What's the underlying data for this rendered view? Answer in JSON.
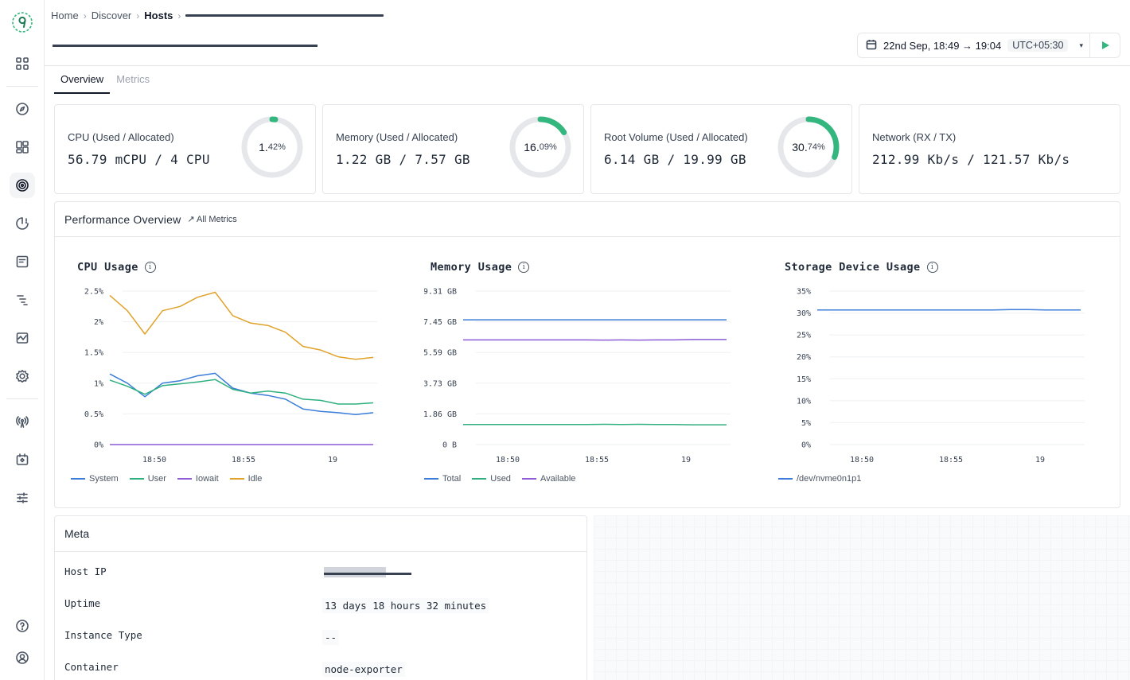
{
  "breadcrumb": {
    "home": "Home",
    "discover": "Discover",
    "hosts": "Hosts",
    "sep": "›"
  },
  "timepicker": {
    "range": "22nd Sep, 18:49 → 19:04",
    "timezone": "UTC+05:30",
    "caret": "▾"
  },
  "tabs": [
    "Overview",
    "Metrics"
  ],
  "cards": [
    {
      "label": "CPU (Used / Allocated)",
      "value": "56.79 mCPU / 4 CPU",
      "pct_int": "1.",
      "pct_dec": "42%",
      "fraction": 0.0142
    },
    {
      "label": "Memory (Used / Allocated)",
      "value": "1.22 GB / 7.57 GB",
      "pct_int": "16.",
      "pct_dec": "09%",
      "fraction": 0.1609
    },
    {
      "label": "Root Volume (Used / Allocated)",
      "value": "6.14 GB / 19.99 GB",
      "pct_int": "30.",
      "pct_dec": "74%",
      "fraction": 0.3074
    },
    {
      "label": "Network (RX / TX)",
      "value": "212.99 Kb/s / 121.57 Kb/s"
    }
  ],
  "performance": {
    "title": "Performance Overview",
    "link": "↗ All Metrics"
  },
  "colors": {
    "blue": "#3b7dd8",
    "green": "#2fb07f",
    "purple": "#8b5cd6",
    "orange": "#e0a22a",
    "gauge": "#34b67f",
    "track": "#e5e7eb"
  },
  "chart_data": [
    {
      "type": "line",
      "title": "CPU Usage",
      "x_ticks": [
        "18:50",
        "18:55",
        "19"
      ],
      "y_ticks": [
        "2.5%",
        "2%",
        "1.5%",
        "1%",
        "0.5%",
        "0%"
      ],
      "ylim": [
        0,
        2.5
      ],
      "x_count": 16,
      "series": [
        {
          "name": "System",
          "color": "#3b7dd8",
          "values": [
            1.15,
            1.0,
            0.78,
            1.0,
            1.04,
            1.12,
            1.16,
            0.92,
            0.84,
            0.8,
            0.74,
            0.58,
            0.54,
            0.52,
            0.49,
            0.52
          ]
        },
        {
          "name": "User",
          "color": "#2fb07f",
          "values": [
            1.05,
            0.95,
            0.82,
            0.96,
            0.99,
            1.02,
            1.06,
            0.9,
            0.84,
            0.87,
            0.84,
            0.74,
            0.72,
            0.66,
            0.66,
            0.68
          ]
        },
        {
          "name": "Iowait",
          "color": "#8b5cd6",
          "values": [
            0,
            0,
            0,
            0,
            0,
            0,
            0,
            0,
            0,
            0,
            0,
            0,
            0,
            0,
            0,
            0
          ]
        },
        {
          "name": "Idle",
          "color": "#e0a22a",
          "values": [
            2.43,
            2.18,
            1.8,
            2.18,
            2.25,
            2.4,
            2.48,
            2.1,
            1.98,
            1.94,
            1.83,
            1.6,
            1.54,
            1.43,
            1.39,
            1.42
          ]
        }
      ]
    },
    {
      "type": "line",
      "title": "Memory Usage",
      "x_ticks": [
        "18:50",
        "18:55",
        "19"
      ],
      "y_ticks": [
        "9.31 GB",
        "7.45 GB",
        "5.59 GB",
        "3.73 GB",
        "1.86 GB",
        "0 B"
      ],
      "ylim": [
        0,
        9.31
      ],
      "x_count": 16,
      "series": [
        {
          "name": "Total",
          "color": "#3b7dd8",
          "values": [
            7.57,
            7.57,
            7.57,
            7.57,
            7.57,
            7.57,
            7.57,
            7.57,
            7.57,
            7.57,
            7.57,
            7.57,
            7.57,
            7.57,
            7.57,
            7.57
          ]
        },
        {
          "name": "Used",
          "color": "#2fb07f",
          "values": [
            1.22,
            1.22,
            1.22,
            1.22,
            1.22,
            1.22,
            1.22,
            1.22,
            1.23,
            1.22,
            1.23,
            1.22,
            1.22,
            1.2,
            1.2,
            1.2
          ]
        },
        {
          "name": "Available",
          "color": "#8b5cd6",
          "values": [
            6.35,
            6.35,
            6.35,
            6.35,
            6.35,
            6.35,
            6.35,
            6.35,
            6.34,
            6.35,
            6.34,
            6.35,
            6.35,
            6.37,
            6.37,
            6.37
          ]
        }
      ]
    },
    {
      "type": "line",
      "title": "Storage Device Usage",
      "x_ticks": [
        "18:50",
        "18:55",
        "19"
      ],
      "y_ticks": [
        "35%",
        "30%",
        "25%",
        "20%",
        "15%",
        "10%",
        "5%",
        "0%"
      ],
      "ylim": [
        0,
        35
      ],
      "x_count": 16,
      "series": [
        {
          "name": "/dev/nvme0n1p1",
          "color": "#3b7dd8",
          "values": [
            30.7,
            30.7,
            30.7,
            30.7,
            30.7,
            30.7,
            30.7,
            30.7,
            30.7,
            30.7,
            30.7,
            30.8,
            30.8,
            30.7,
            30.7,
            30.7
          ]
        }
      ]
    }
  ],
  "meta": {
    "title": "Meta",
    "rows": [
      {
        "label": "Host IP",
        "value": ""
      },
      {
        "label": "Uptime",
        "value": "13 days 18 hours 32 minutes"
      },
      {
        "label": "Instance Type",
        "value": "--"
      },
      {
        "label": "Container",
        "value": "node-exporter"
      }
    ]
  }
}
